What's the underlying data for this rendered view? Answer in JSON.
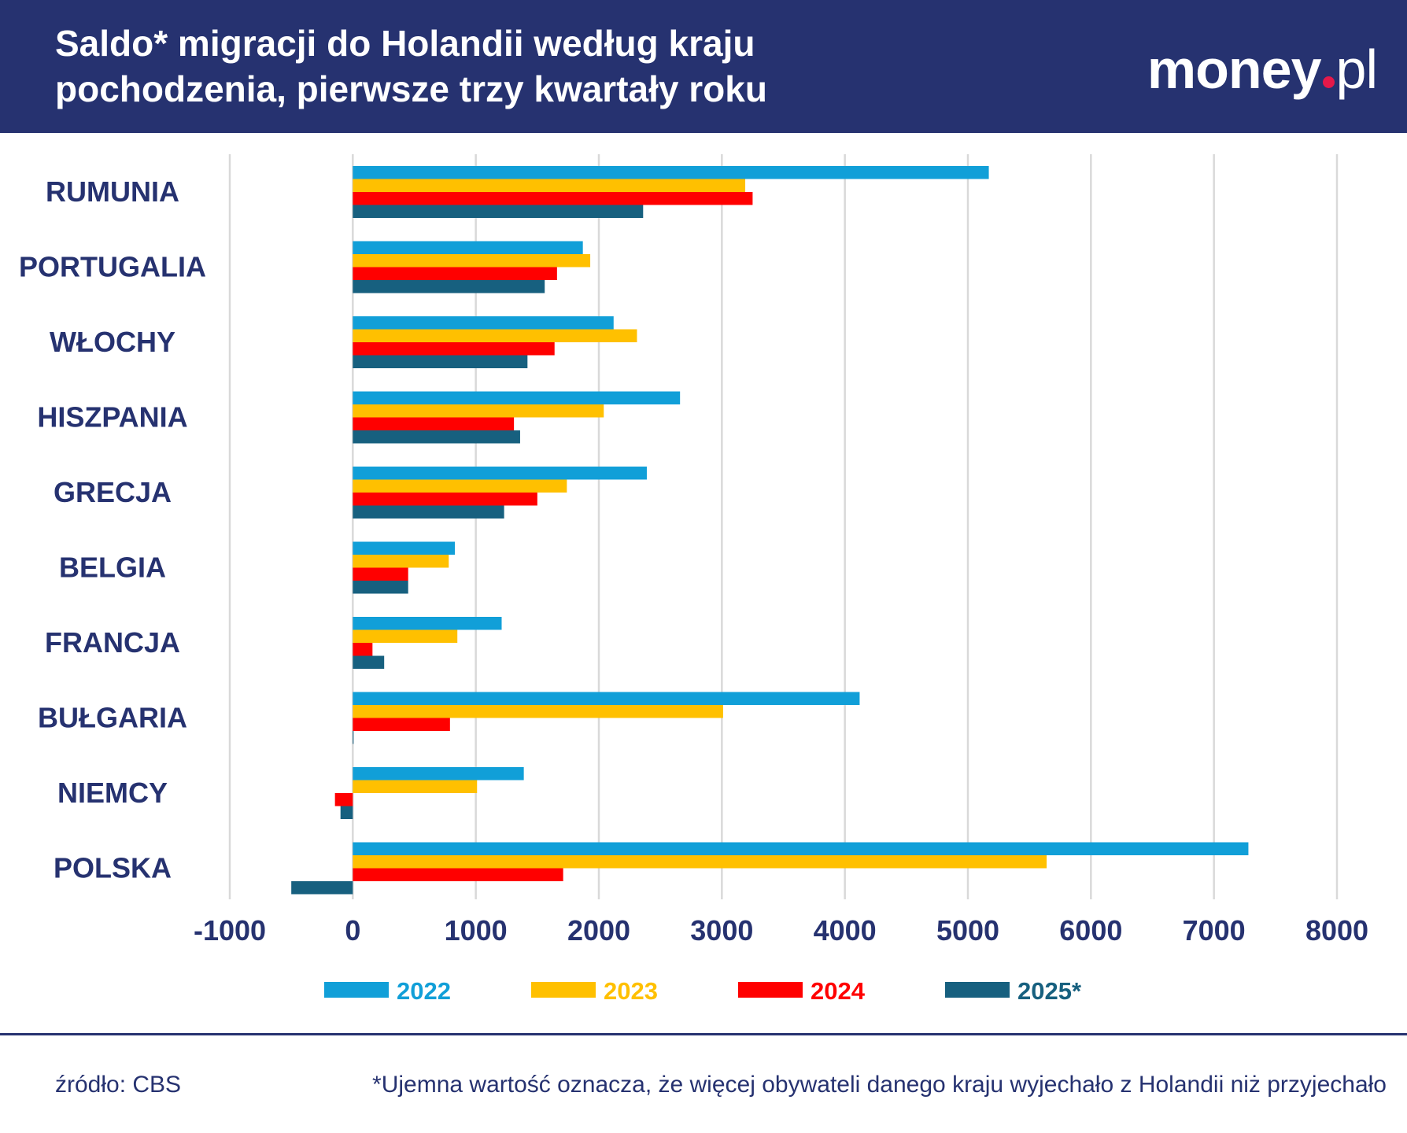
{
  "header": {
    "title_line1": "Saldo* migracji do Holandii według kraju",
    "title_line2": "pochodzenia, pierwsze trzy kwartały roku",
    "logo": "money.pl",
    "background_color": "#263270"
  },
  "chart_data": {
    "type": "bar",
    "orientation": "horizontal",
    "categories": [
      "RUMUNIA",
      "PORTUGALIA",
      "WŁOCHY",
      "HISZPANIA",
      "GRECJA",
      "BELGIA",
      "FRANCJA",
      "BUŁGARIA",
      "NIEMCY",
      "POLSKA"
    ],
    "series": [
      {
        "name": "2022",
        "color": "#119fd8",
        "values": [
          5170,
          1870,
          2120,
          2660,
          2390,
          830,
          1210,
          4120,
          1390,
          7280
        ]
      },
      {
        "name": "2023",
        "color": "#ffc000",
        "values": [
          3190,
          1930,
          2310,
          2040,
          1740,
          780,
          850,
          3010,
          1010,
          5640
        ]
      },
      {
        "name": "2024",
        "color": "#ff0000",
        "values": [
          3250,
          1660,
          1640,
          1310,
          1500,
          450,
          160,
          790,
          -145,
          1710
        ]
      },
      {
        "name": "2025*",
        "color": "#17607f",
        "values": [
          2360,
          1560,
          1420,
          1360,
          1230,
          450,
          255,
          5,
          -100,
          -500
        ]
      }
    ],
    "xlim": [
      -1000,
      8000
    ],
    "xticks": [
      -1000,
      0,
      1000,
      2000,
      3000,
      4000,
      5000,
      6000,
      7000,
      8000
    ],
    "xtick_labels": [
      "-1000",
      "0",
      "1000",
      "2000",
      "3000",
      "4000",
      "5000",
      "6000",
      "7000",
      "8000"
    ],
    "grid": true,
    "legend_placement": "bottom"
  },
  "footer": {
    "source": "źródło: CBS",
    "note": "*Ujemna wartość oznacza, że więcej obywateli danego kraju wyjechało z Holandii niż przyjechało"
  }
}
